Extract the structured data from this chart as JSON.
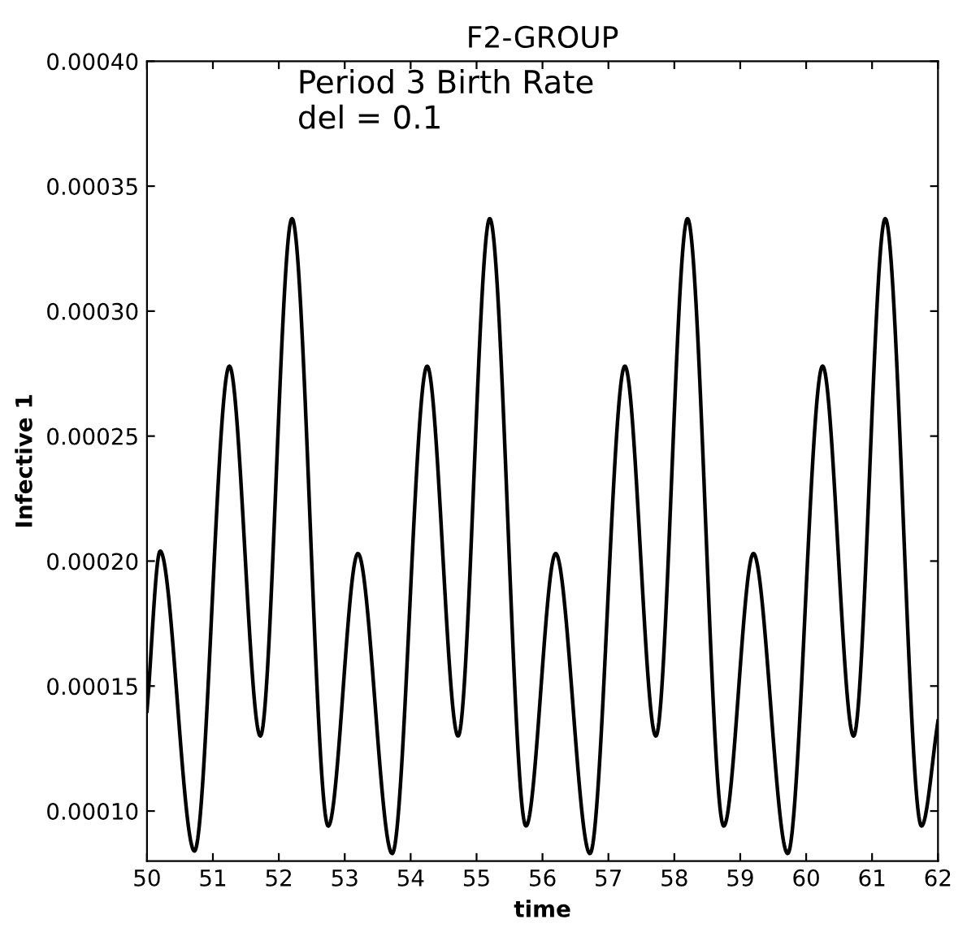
{
  "chart_data": {
    "type": "line",
    "title": "F2-GROUP",
    "xlabel": "time",
    "ylabel": "Infective 1",
    "annotations": [
      "Period 3 Birth Rate\ndel = 0.1"
    ],
    "x": [
      50,
      50.2,
      50.72,
      51.25,
      51.72,
      52.2,
      52.75,
      53.2,
      53.72,
      54.25,
      54.72,
      55.2,
      55.75,
      56.2,
      56.72,
      57.25,
      57.72,
      58.2,
      58.75,
      59.2,
      59.72,
      60.25,
      60.72,
      61.2,
      61.75,
      62
    ],
    "series": [
      {
        "color": "#000000",
        "values": [
          0.00014,
          0.000204,
          8.4e-05,
          0.000278,
          0.00013,
          0.000337,
          9.4e-05,
          0.000203,
          8.3e-05,
          0.000278,
          0.00013,
          0.000337,
          9.4e-05,
          0.000203,
          8.3e-05,
          0.000278,
          0.00013,
          0.000337,
          9.4e-05,
          0.000203,
          8.3e-05,
          0.000278,
          0.00013,
          0.000337,
          9.4e-05,
          0.000136
        ]
      }
    ],
    "xlim": [
      50,
      62
    ],
    "ylim": [
      8e-05,
      0.0004
    ],
    "xticks": [
      50,
      51,
      52,
      53,
      54,
      55,
      56,
      57,
      58,
      59,
      60,
      61,
      62
    ],
    "yticks": [
      {
        "value": 0.0001,
        "label": "0.00010"
      },
      {
        "value": 0.00015,
        "label": "0.00015"
      },
      {
        "value": 0.0002,
        "label": "0.00020"
      },
      {
        "value": 0.00025,
        "label": "0.00025"
      },
      {
        "value": 0.0003,
        "label": "0.00030"
      },
      {
        "value": 0.00035,
        "label": "0.00035"
      },
      {
        "value": 0.0004,
        "label": "0.00040"
      }
    ],
    "grid": false,
    "legend": false,
    "marker": "none",
    "line_style": "solid"
  }
}
